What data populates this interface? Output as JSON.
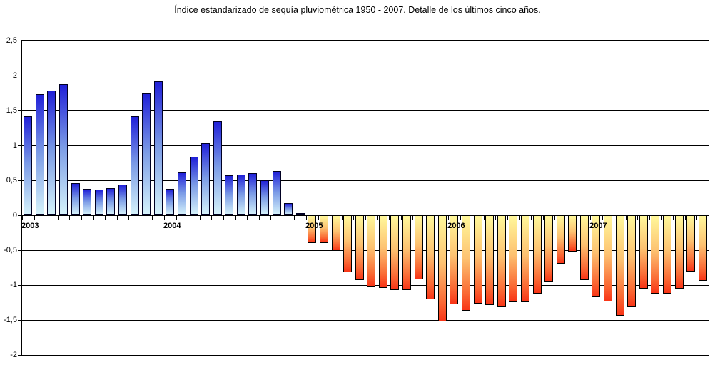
{
  "title": "Índice estandarizado de sequía pluviométrica 1950 - 2007. Detalle de los últimos cinco años.",
  "chart_data": {
    "type": "bar",
    "title": "Índice estandarizado de sequía pluviométrica 1950 - 2007. Detalle de los últimos cinco años.",
    "xlabel": "",
    "ylabel": "",
    "ylim": [
      -2,
      2.5
    ],
    "grid": "horizontal",
    "legend": "none",
    "y_ticks": [
      2.5,
      2,
      1.5,
      1,
      0.5,
      0,
      -0.5,
      -1,
      -1.5,
      -2
    ],
    "y_tick_labels": [
      "2,5",
      "2",
      "1,5",
      "1",
      "0,5",
      "0",
      "-0,5",
      "-1",
      "-1,5",
      "-2"
    ],
    "x_year_labels": [
      "2003",
      "2004",
      "2005",
      "2006",
      "2007"
    ],
    "series": [
      {
        "name": "2003",
        "values": [
          1.42,
          1.73,
          1.79,
          1.88,
          0.46,
          0.38,
          0.37,
          0.39,
          0.44,
          1.42,
          1.74,
          1.92
        ]
      },
      {
        "name": "2004",
        "values": [
          0.38,
          0.61,
          0.84,
          1.03,
          1.35,
          0.57,
          0.58,
          0.6,
          0.5,
          0.63,
          0.17,
          0.03
        ]
      },
      {
        "name": "2005",
        "values": [
          -0.4,
          -0.4,
          -0.51,
          -0.82,
          -0.93,
          -1.03,
          -1.04,
          -1.07,
          -1.07,
          -0.92,
          -1.2,
          -1.52
        ]
      },
      {
        "name": "2006",
        "values": [
          -1.28,
          -1.37,
          -1.27,
          -1.29,
          -1.32,
          -1.24,
          -1.24,
          -1.12,
          -0.96,
          -0.69,
          -0.52,
          -0.93
        ]
      },
      {
        "name": "2007",
        "values": [
          -1.17,
          -1.23,
          -1.44,
          -1.32,
          -1.05,
          -1.12,
          -1.12,
          -1.05,
          -0.81,
          -0.94
        ]
      }
    ],
    "colors": {
      "positive_bar_top": "#2020d8",
      "positive_bar_mid": "#7b9be6",
      "positive_bar_bottom": "#d6f3fb",
      "negative_bar_top": "#fff89b",
      "negative_bar_mid": "#fdc271",
      "negative_bar_low": "#fa6a35",
      "negative_bar_bottom": "#f83517",
      "bar_border": "#000000",
      "gridline": "#000000",
      "background": "#ffffff"
    }
  }
}
